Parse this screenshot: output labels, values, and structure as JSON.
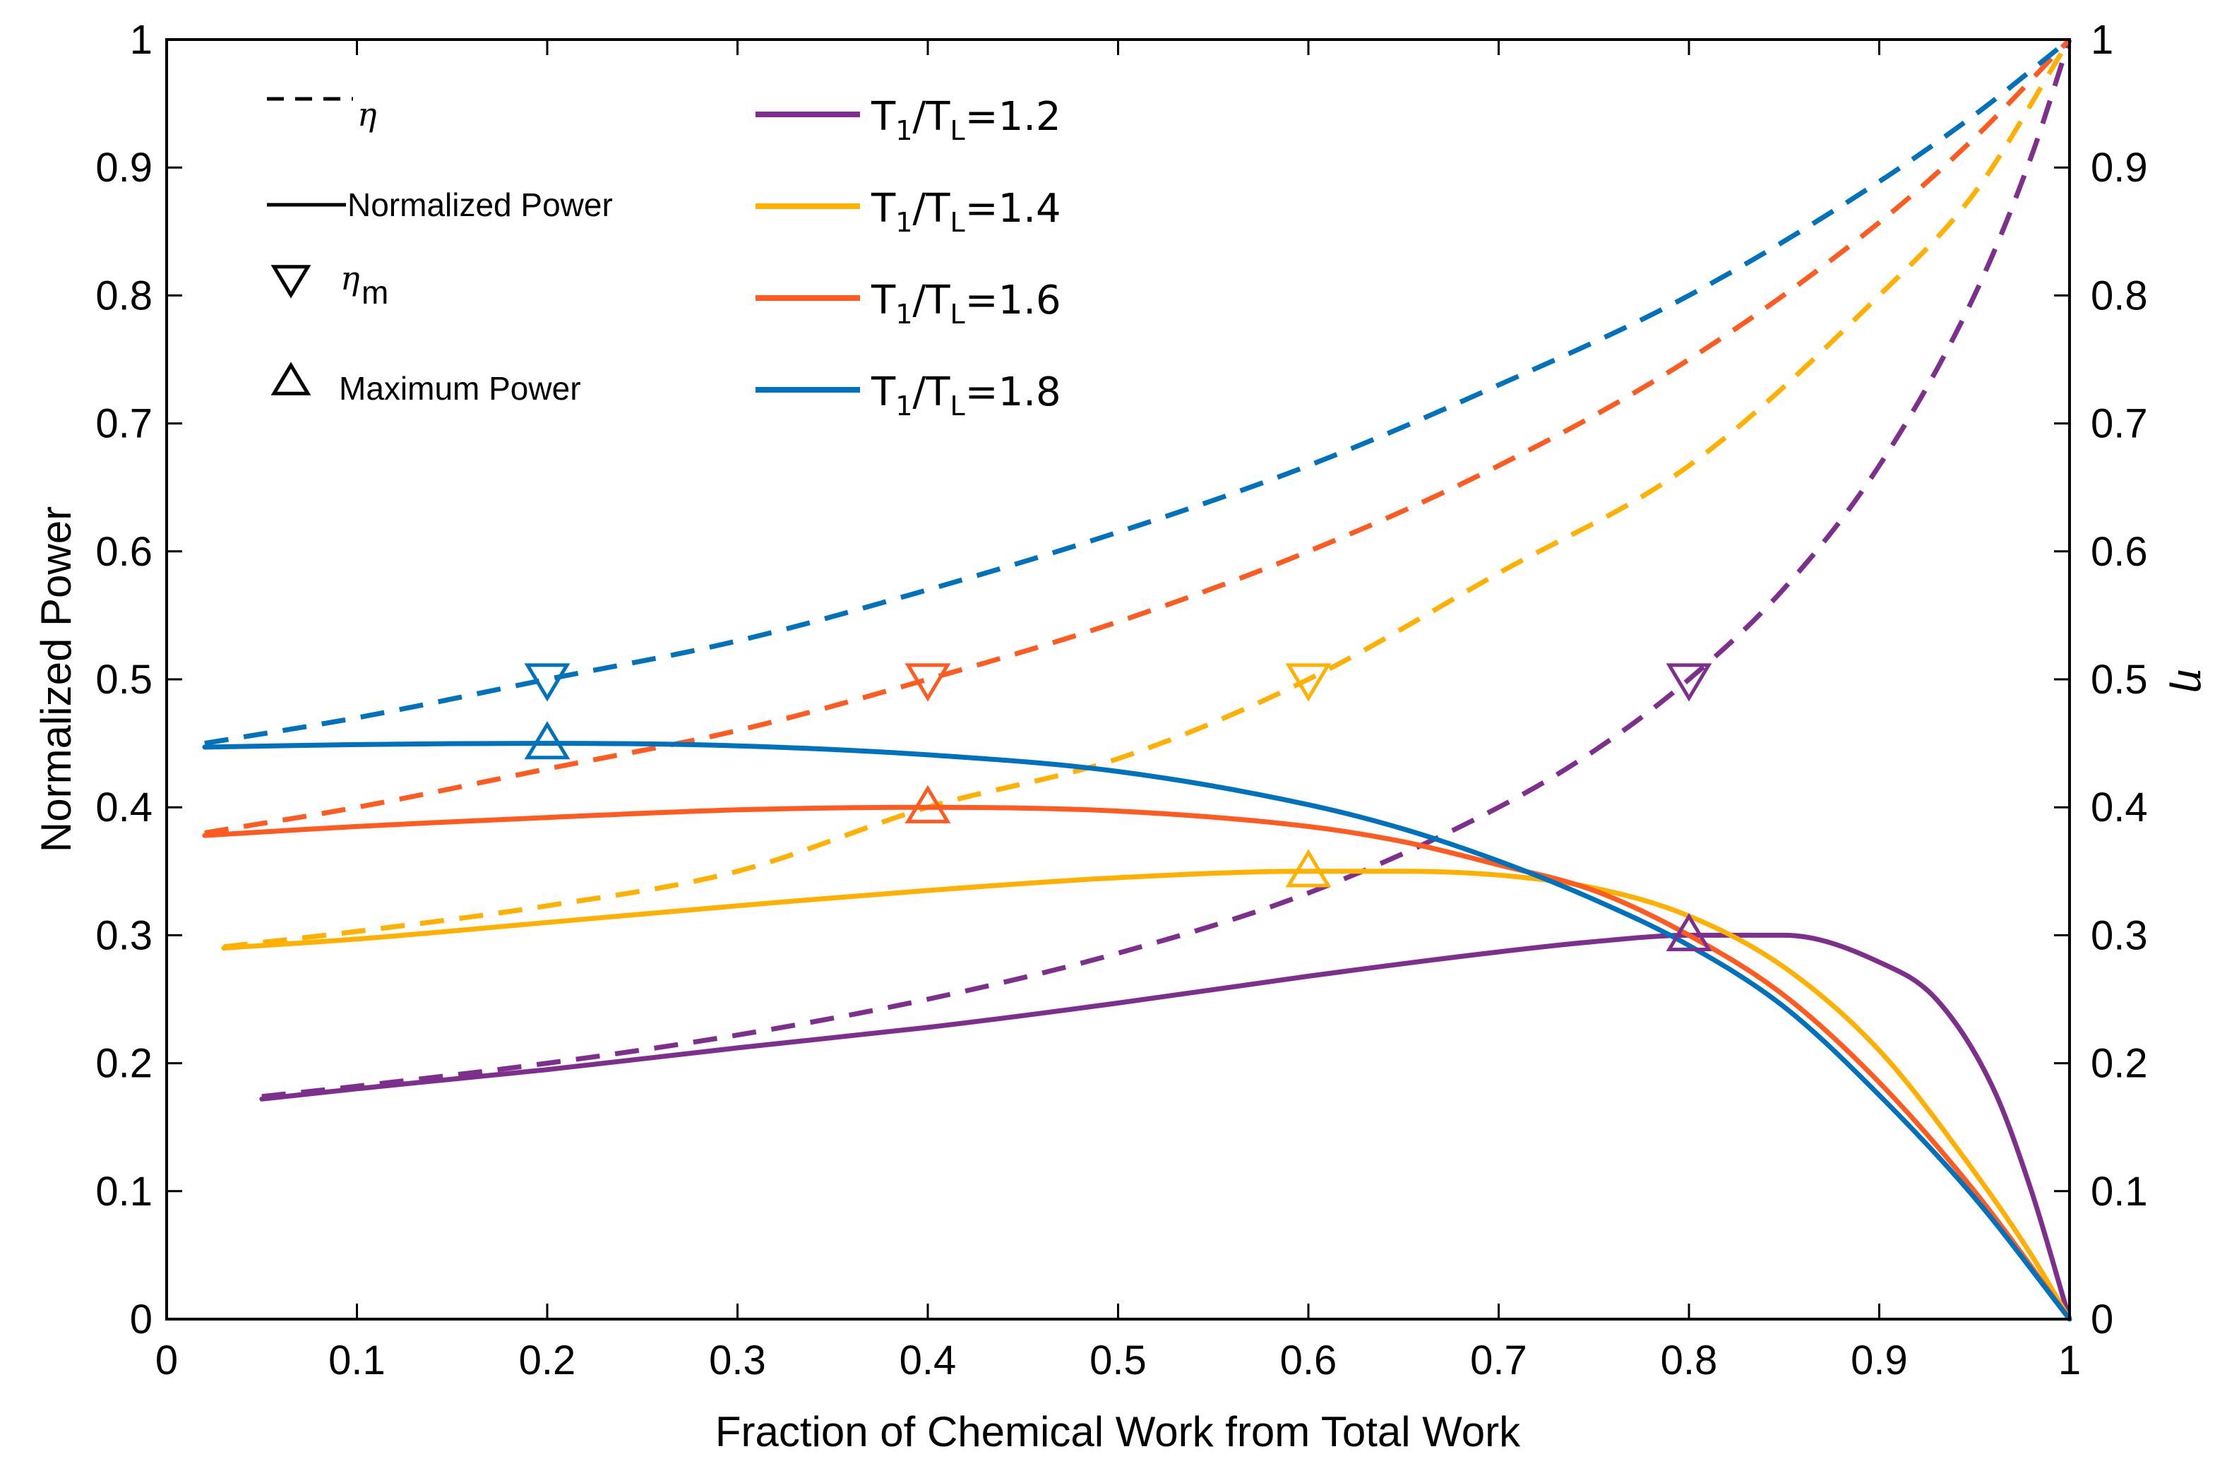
{
  "chart_data": {
    "type": "line",
    "xlabel": "Fraction of Chemical Work from Total Work",
    "ylabel": "Normalized Power",
    "y2label": "η",
    "xlim": [
      0,
      1
    ],
    "ylim": [
      0,
      1
    ],
    "y2lim": [
      0,
      1
    ],
    "grid": false,
    "x_ticks": [
      "0",
      "0.1",
      "0.2",
      "0.3",
      "0.4",
      "0.5",
      "0.6",
      "0.7",
      "0.8",
      "0.9",
      "1"
    ],
    "y_ticks": [
      "0",
      "0.1",
      "0.2",
      "0.3",
      "0.4",
      "0.5",
      "0.6",
      "0.7",
      "0.8",
      "0.9",
      "1"
    ],
    "legend_style": [
      {
        "symbol": "dashed",
        "label": "η"
      },
      {
        "symbol": "solid",
        "label": "Normalized Power"
      },
      {
        "symbol": "down-triangle",
        "label": "η",
        "label_sub": "m"
      },
      {
        "symbol": "up-triangle",
        "label": "Maximum Power"
      }
    ],
    "series": [
      {
        "name": "T1/TL=1.2",
        "legend": {
          "main": "T",
          "sub1": "1",
          "sep": "/T",
          "sub2": "L",
          "tail": "=1.2"
        },
        "color": "#7e2f8e",
        "power": {
          "x": [
            0.05,
            0.1,
            0.2,
            0.3,
            0.4,
            0.5,
            0.6,
            0.7,
            0.75,
            0.8,
            0.85,
            0.9,
            0.93,
            0.96,
            0.98,
            1.0
          ],
          "y": [
            0.172,
            0.18,
            0.195,
            0.212,
            0.228,
            0.247,
            0.268,
            0.287,
            0.295,
            0.3,
            0.3,
            0.279,
            0.25,
            0.18,
            0.1,
            0.0
          ]
        },
        "efficiency": {
          "x": [
            0.05,
            0.1,
            0.2,
            0.3,
            0.4,
            0.5,
            0.6,
            0.7,
            0.75,
            0.8,
            0.85,
            0.9,
            0.95,
            0.98,
            1.0
          ],
          "y": [
            0.174,
            0.182,
            0.2,
            0.222,
            0.25,
            0.286,
            0.333,
            0.4,
            0.444,
            0.5,
            0.571,
            0.667,
            0.8,
            0.909,
            1.0
          ]
        },
        "max_power_point": {
          "x": 0.8,
          "y": 0.3
        },
        "eta_m_point": {
          "x": 0.8,
          "y": 0.5
        }
      },
      {
        "name": "T1/TL=1.4",
        "legend": {
          "main": "T",
          "sub1": "1",
          "sep": "/T",
          "sub2": "L",
          "tail": "=1.4"
        },
        "color": "#ffb000",
        "power": {
          "x": [
            0.03,
            0.1,
            0.2,
            0.3,
            0.4,
            0.5,
            0.6,
            0.65,
            0.7,
            0.75,
            0.8,
            0.85,
            0.9,
            0.95,
            0.98,
            1.0
          ],
          "y": [
            0.29,
            0.297,
            0.31,
            0.323,
            0.335,
            0.345,
            0.35,
            0.35,
            0.347,
            0.337,
            0.315,
            0.275,
            0.21,
            0.115,
            0.05,
            0.0
          ]
        },
        "efficiency": {
          "x": [
            0.03,
            0.1,
            0.2,
            0.3,
            0.4,
            0.5,
            0.6,
            0.7,
            0.8,
            0.9,
            0.95,
            1.0
          ],
          "y": [
            0.291,
            0.303,
            0.323,
            0.35,
            0.4,
            0.438,
            0.5,
            0.583,
            0.667,
            0.8,
            0.88,
            1.0
          ]
        },
        "max_power_point": {
          "x": 0.6,
          "y": 0.35
        },
        "eta_m_point": {
          "x": 0.6,
          "y": 0.5
        }
      },
      {
        "name": "T1/TL=1.6",
        "legend": {
          "main": "T",
          "sub1": "1",
          "sep": "/T",
          "sub2": "L",
          "tail": "=1.6"
        },
        "color": "#ff5a1f",
        "power": {
          "x": [
            0.02,
            0.1,
            0.2,
            0.3,
            0.4,
            0.5,
            0.6,
            0.65,
            0.7,
            0.75,
            0.8,
            0.85,
            0.9,
            0.95,
            1.0
          ],
          "y": [
            0.378,
            0.385,
            0.392,
            0.398,
            0.4,
            0.397,
            0.385,
            0.373,
            0.355,
            0.335,
            0.3,
            0.253,
            0.185,
            0.1,
            0.0
          ]
        },
        "efficiency": {
          "x": [
            0.02,
            0.1,
            0.2,
            0.3,
            0.4,
            0.5,
            0.6,
            0.7,
            0.8,
            0.9,
            0.95,
            1.0
          ],
          "y": [
            0.38,
            0.4,
            0.43,
            0.46,
            0.5,
            0.545,
            0.6,
            0.667,
            0.75,
            0.857,
            0.923,
            1.0
          ]
        },
        "max_power_point": {
          "x": 0.4,
          "y": 0.4
        },
        "eta_m_point": {
          "x": 0.4,
          "y": 0.5
        }
      },
      {
        "name": "T1/TL=1.8",
        "legend": {
          "main": "T",
          "sub1": "1",
          "sep": "/T",
          "sub2": "L",
          "tail": "=1.8"
        },
        "color": "#0072bd",
        "power": {
          "x": [
            0.02,
            0.1,
            0.2,
            0.3,
            0.4,
            0.5,
            0.6,
            0.65,
            0.7,
            0.75,
            0.8,
            0.85,
            0.9,
            0.95,
            1.0
          ],
          "y": [
            0.447,
            0.449,
            0.45,
            0.448,
            0.441,
            0.428,
            0.402,
            0.383,
            0.358,
            0.328,
            0.292,
            0.244,
            0.175,
            0.095,
            0.0
          ]
        },
        "efficiency": {
          "x": [
            0.02,
            0.1,
            0.2,
            0.3,
            0.4,
            0.5,
            0.6,
            0.7,
            0.8,
            0.9,
            0.95,
            1.0
          ],
          "y": [
            0.45,
            0.47,
            0.5,
            0.53,
            0.57,
            0.615,
            0.667,
            0.73,
            0.8,
            0.889,
            0.941,
            1.0
          ]
        },
        "max_power_point": {
          "x": 0.2,
          "y": 0.45
        },
        "eta_m_point": {
          "x": 0.2,
          "y": 0.5
        }
      }
    ]
  }
}
